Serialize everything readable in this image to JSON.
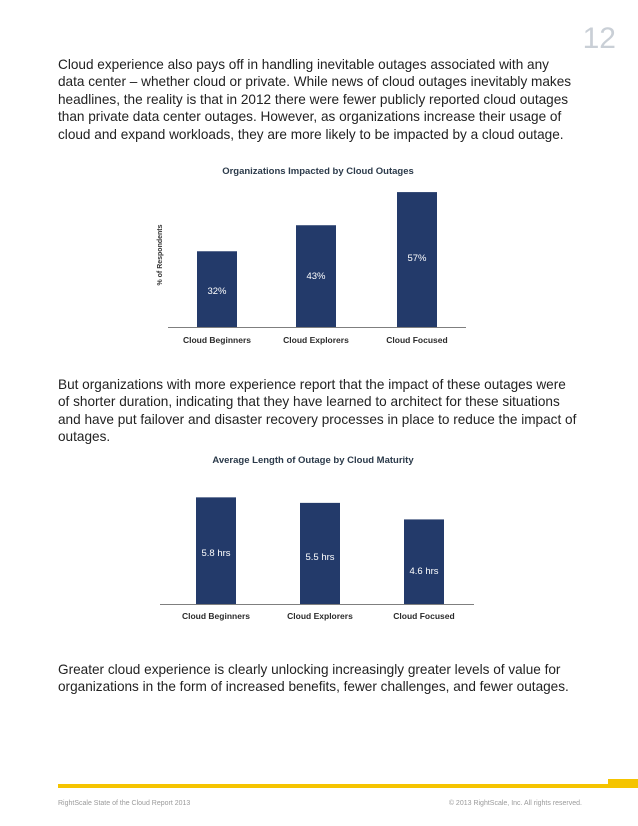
{
  "page_number": "12",
  "paragraphs": {
    "p1": "Cloud experience also pays off in handling inevitable outages associated with any data center – whether cloud or private. While news of cloud outages inevitably makes headlines, the reality is that in 2012 there were fewer publicly reported cloud outages than private data center outages. However, as organizations increase their usage of cloud and expand workloads, they are more likely to be impacted by a cloud outage.",
    "p2": "But organizations with more experience report that the impact of these outages were of shorter duration, indicating that they have learned to architect for these situations and have put failover and disaster recovery processes in place to reduce the impact of outages.",
    "p3": "Greater cloud experience is clearly unlocking increasingly greater levels of value for organizations in the form of increased benefits, fewer challenges, and fewer outages."
  },
  "footer": {
    "left": "RightScale State of the Cloud Report 2013",
    "right": "© 2013 RightScale, Inc. All rights reserved."
  },
  "colors": {
    "bar": "#233a6a",
    "accent": "#f5c400",
    "axis": "#555555"
  },
  "chart_data": [
    {
      "type": "bar",
      "title": "Organizations Impacted by Cloud Outages",
      "ylabel": "% of Respondents",
      "xlabel": "",
      "categories": [
        "Cloud Beginners",
        "Cloud Explorers",
        "Cloud Focused"
      ],
      "values": [
        32,
        43,
        57
      ],
      "value_labels": [
        "32%",
        "43%",
        "57%"
      ],
      "ylim": [
        0,
        60
      ],
      "grid": false
    },
    {
      "type": "bar",
      "title": "Average Length of Outage by Cloud Maturity",
      "ylabel": "",
      "xlabel": "",
      "categories": [
        "Cloud Beginners",
        "Cloud Explorers",
        "Cloud Focused"
      ],
      "values": [
        5.8,
        5.5,
        4.6
      ],
      "value_labels": [
        "5.8 hrs",
        "5.5 hrs",
        "4.6 hrs"
      ],
      "ylim": [
        0,
        6.2
      ],
      "grid": false
    }
  ]
}
